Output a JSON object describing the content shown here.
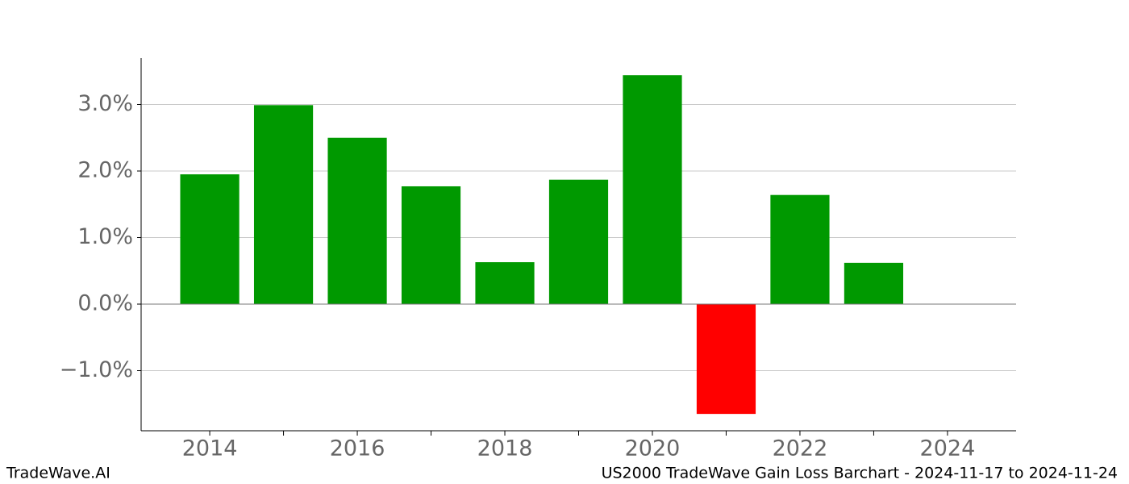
{
  "chart_data": {
    "type": "bar",
    "x": [
      2014,
      2015,
      2016,
      2017,
      2018,
      2019,
      2020,
      2021,
      2022,
      2023
    ],
    "values": [
      1.95,
      2.99,
      2.5,
      1.77,
      0.63,
      1.87,
      3.44,
      -1.65,
      1.64,
      0.62
    ],
    "color_positive": "#009900",
    "color_negative": "#ff0000",
    "xlim": [
      2013.07,
      2024.93
    ],
    "xticks": [
      2014,
      2016,
      2018,
      2020,
      2022,
      2024
    ],
    "xminorticks": [
      2015,
      2017,
      2019,
      2021,
      2023
    ],
    "ylim": [
      -1.903,
      3.697
    ],
    "yticks": [
      {
        "value": -1,
        "label": "−1.0%"
      },
      {
        "value": 0,
        "label": "0.0%"
      },
      {
        "value": 1,
        "label": "1.0%"
      },
      {
        "value": 2,
        "label": "2.0%"
      },
      {
        "value": 3,
        "label": "3.0%"
      }
    ],
    "grid": true,
    "watermark": "TradeWave.AI",
    "title": "US2000 TradeWave Gain Loss Barchart - 2024-11-17 to 2024-11-24"
  }
}
